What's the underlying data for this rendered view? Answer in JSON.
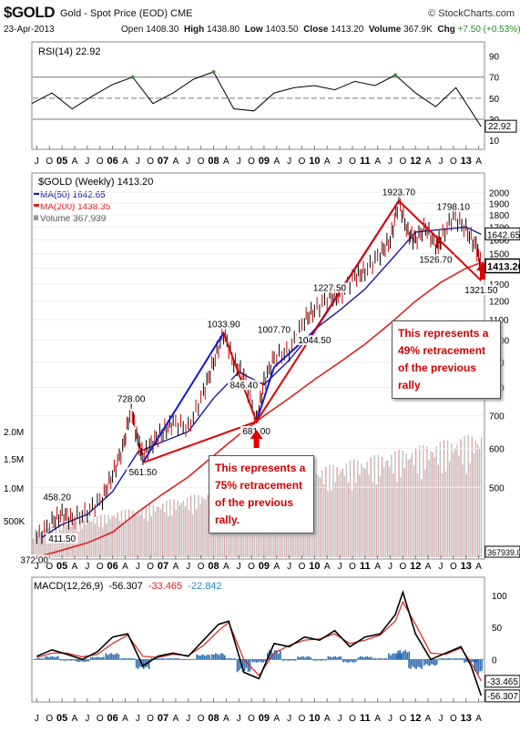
{
  "header": {
    "symbol": "$GOLD",
    "description": "Gold - Spot Price (EOD) CME",
    "brand": "© StockCharts.com",
    "date": "23-Apr-2013",
    "open_label": "Open",
    "open": "1408.30",
    "high_label": "High",
    "high": "1438.80",
    "low_label": "Low",
    "low": "1403.50",
    "close_label": "Close",
    "close": "1413.20",
    "volume_label": "Volume",
    "volume": "367.9K",
    "chg_label": "Chg",
    "chg": "+7.50 (+0.53%)",
    "chg_arrow": "▲"
  },
  "colors": {
    "ma50": "#1a1aa0",
    "ma200": "#e02020",
    "price_up": "#000000",
    "price_down": "#cc0000",
    "volume": "#c0c0c0",
    "volume_red": "#e8a0a0",
    "trend_blue": "#1515d0",
    "trend_red": "#e00000",
    "macd_hist": "#2a6ab0",
    "macd_line": "#000000",
    "signal_line": "#e02020",
    "rsi_fill": "#4a8a4a"
  },
  "x_labels": [
    "J",
    "O",
    "05",
    "A",
    "J",
    "O",
    "06",
    "A",
    "J",
    "O",
    "07",
    "A",
    "J",
    "O",
    "08",
    "A",
    "J",
    "O",
    "09",
    "A",
    "J",
    "O",
    "10",
    "A",
    "J",
    "O",
    "11",
    "A",
    "J",
    "O",
    "12",
    "A",
    "J",
    "O",
    "13",
    "A"
  ],
  "chart_data": [
    {
      "type": "line",
      "panel": "RSI",
      "legend": "RSI(14) 22.92",
      "y_ticks": [
        10,
        30,
        50,
        70,
        90
      ],
      "ylim": [
        5,
        100
      ],
      "reference_lines": [
        70,
        50,
        30
      ],
      "last_value": 22.92,
      "last_value_label": "22.92",
      "x": [
        2004.4,
        2004.8,
        2005.2,
        2005.6,
        2006.0,
        2006.4,
        2006.8,
        2007.2,
        2007.6,
        2008.0,
        2008.4,
        2008.8,
        2009.2,
        2009.6,
        2010.0,
        2010.4,
        2010.8,
        2011.2,
        2011.6,
        2012.0,
        2012.4,
        2012.8,
        2013.1,
        2013.3
      ],
      "values": [
        45,
        55,
        40,
        52,
        63,
        70,
        45,
        55,
        68,
        75,
        40,
        38,
        55,
        60,
        62,
        58,
        66,
        62,
        72,
        55,
        42,
        60,
        38,
        23
      ]
    },
    {
      "type": "line",
      "panel": "Price",
      "title": "$GOLD (Weekly) 1413.20",
      "y_ticks": [
        1000,
        1100,
        1200,
        1300,
        1400,
        1500,
        1600,
        1700,
        1800,
        1900,
        2000
      ],
      "y_ticks_low": [
        600,
        700,
        800,
        900,
        500
      ],
      "scale": "log",
      "ylim": [
        360,
        2100
      ],
      "x": [
        2004.5,
        2004.8,
        2005.0,
        2005.2,
        2005.5,
        2005.8,
        2006.0,
        2006.2,
        2006.37,
        2006.5,
        2006.6,
        2006.8,
        2007.0,
        2007.2,
        2007.5,
        2007.8,
        2008.0,
        2008.2,
        2008.4,
        2008.6,
        2008.85,
        2009.0,
        2009.2,
        2009.5,
        2009.8,
        2010.0,
        2010.3,
        2010.5,
        2010.8,
        2011.0,
        2011.3,
        2011.5,
        2011.67,
        2011.85,
        2012.0,
        2012.2,
        2012.4,
        2012.5,
        2012.75,
        2013.0,
        2013.2,
        2013.3
      ],
      "values": [
        395,
        425,
        440,
        430,
        445,
        475,
        530,
        600,
        728,
        620,
        580,
        620,
        650,
        680,
        660,
        780,
        900,
        1033.9,
        900,
        846.4,
        681,
        820,
        920,
        950,
        1100,
        1150,
        1227.5,
        1230,
        1350,
        1380,
        1500,
        1600,
        1923.7,
        1650,
        1600,
        1700,
        1560,
        1600,
        1798.1,
        1680,
        1550,
        1413.2
      ],
      "series": [
        {
          "name": "MA(50) 1642.65",
          "last_value": 1642.65,
          "x": [
            2004.6,
            2005.0,
            2005.5,
            2006.0,
            2006.5,
            2007.0,
            2007.5,
            2008.0,
            2008.5,
            2009.0,
            2009.5,
            2010.0,
            2010.5,
            2011.0,
            2011.5,
            2012.0,
            2012.5,
            2013.0,
            2013.3
          ],
          "values": [
            395,
            420,
            440,
            490,
            590,
            620,
            650,
            760,
            860,
            810,
            910,
            1050,
            1150,
            1270,
            1450,
            1660,
            1680,
            1700,
            1642.65
          ]
        },
        {
          "name": "MA(200) 1438.35",
          "last_value": 1438.35,
          "x": [
            2004.5,
            2005.0,
            2005.5,
            2006.0,
            2006.5,
            2007.0,
            2007.5,
            2008.0,
            2008.5,
            2009.0,
            2009.5,
            2010.0,
            2010.5,
            2011.0,
            2011.5,
            2012.0,
            2012.5,
            2013.0,
            2013.3
          ],
          "values": [
            360,
            372,
            385,
            405,
            445,
            485,
            525,
            580,
            640,
            700,
            760,
            830,
            900,
            980,
            1080,
            1200,
            1310,
            1400,
            1438.35
          ]
        },
        {
          "name": "Volume 367,939",
          "last_value": 367939
        }
      ],
      "volume_axis_ticks": [
        "500K",
        "1.0M",
        "1.5M",
        "2.0M"
      ],
      "volume_last_label": "367939.0",
      "last_price_label": "1413.20",
      "ma50_label": "1642.65",
      "price_labels": [
        {
          "text": "372.00",
          "x": 2004.45,
          "y": 372
        },
        {
          "text": "411.50",
          "x": 2005.0,
          "y": 411.5
        },
        {
          "text": "458.20",
          "x": 2004.9,
          "y": 458.2
        },
        {
          "text": "561.50",
          "x": 2006.6,
          "y": 561.5
        },
        {
          "text": "728.00",
          "x": 2006.37,
          "y": 728
        },
        {
          "text": "1033.90",
          "x": 2008.2,
          "y": 1033.9
        },
        {
          "text": "846.40",
          "x": 2008.6,
          "y": 846.4
        },
        {
          "text": "681.00",
          "x": 2008.85,
          "y": 681
        },
        {
          "text": "1007.70",
          "x": 2009.2,
          "y": 1007.7
        },
        {
          "text": "1044.50",
          "x": 2010.0,
          "y": 1044.5
        },
        {
          "text": "1227.50",
          "x": 2010.3,
          "y": 1227.5
        },
        {
          "text": "1923.70",
          "x": 2011.67,
          "y": 1923.7
        },
        {
          "text": "1526.70",
          "x": 2012.4,
          "y": 1526.7
        },
        {
          "text": "1798.10",
          "x": 2012.75,
          "y": 1798.1
        },
        {
          "text": "1321.50",
          "x": 2013.3,
          "y": 1321.5
        }
      ],
      "trendlines": [
        {
          "color": "blue",
          "from": [
            2006.6,
            561.5
          ],
          "to": [
            2008.2,
            1033.9
          ]
        },
        {
          "color": "blue",
          "from": [
            2008.85,
            681
          ],
          "to": [
            2009.2,
            880
          ]
        },
        {
          "color": "blue",
          "from": [
            2009.2,
            880
          ],
          "to": [
            2010.0,
            1044.5
          ]
        },
        {
          "color": "blue",
          "from": [
            2010.0,
            1044.5
          ],
          "to": [
            2011.67,
            1923.7
          ]
        },
        {
          "color": "red",
          "from": [
            2008.2,
            1033.9
          ],
          "to": [
            2008.85,
            681
          ]
        },
        {
          "color": "red",
          "from": [
            2006.6,
            561.5
          ],
          "to": [
            2008.85,
            681
          ]
        },
        {
          "color": "red",
          "from": [
            2008.85,
            681
          ],
          "to": [
            2011.67,
            1923.7
          ]
        },
        {
          "color": "red",
          "from": [
            2011.67,
            1923.7
          ],
          "to": [
            2013.3,
            1321.5
          ]
        }
      ],
      "annotations": [
        {
          "text": "This represents a 75% retracement of the previous rally."
        },
        {
          "text": "This represents a 49% retracement of the previous rally"
        }
      ]
    },
    {
      "type": "line",
      "panel": "MACD",
      "legend_prefix": "MACD(12,26,9)",
      "legend_macd": "-56.307",
      "legend_signal": "-33.465",
      "legend_hist": "-22.842",
      "y_ticks": [
        100,
        50,
        0
      ],
      "ylim": [
        -65,
        120
      ],
      "x": [
        2004.5,
        2004.8,
        2005.1,
        2005.4,
        2005.7,
        2006.0,
        2006.3,
        2006.6,
        2006.9,
        2007.2,
        2007.5,
        2007.8,
        2008.1,
        2008.3,
        2008.6,
        2008.9,
        2009.2,
        2009.5,
        2009.8,
        2010.1,
        2010.4,
        2010.7,
        2011.0,
        2011.3,
        2011.6,
        2011.75,
        2012.0,
        2012.3,
        2012.6,
        2012.9,
        2013.1,
        2013.3
      ],
      "series": [
        {
          "name": "MACD",
          "values": [
            5,
            15,
            8,
            0,
            12,
            35,
            40,
            -10,
            5,
            10,
            5,
            30,
            55,
            60,
            -20,
            -30,
            25,
            20,
            35,
            30,
            45,
            20,
            35,
            40,
            70,
            105,
            40,
            0,
            10,
            20,
            -10,
            -56.307
          ]
        },
        {
          "name": "Signal",
          "values": [
            3,
            10,
            10,
            4,
            8,
            25,
            38,
            5,
            3,
            8,
            6,
            22,
            45,
            58,
            0,
            -25,
            10,
            22,
            30,
            32,
            40,
            25,
            30,
            38,
            60,
            90,
            55,
            10,
            8,
            18,
            -5,
            -33.465
          ]
        },
        {
          "name": "Histogram",
          "values": [
            2,
            5,
            -2,
            -4,
            4,
            10,
            2,
            -15,
            2,
            2,
            -1,
            8,
            10,
            2,
            -20,
            -5,
            15,
            -2,
            5,
            -2,
            5,
            -5,
            5,
            2,
            10,
            15,
            -15,
            -10,
            2,
            2,
            -5,
            -22.842
          ]
        }
      ],
      "right_labels": [
        "-33.465",
        "-56.307"
      ]
    }
  ]
}
